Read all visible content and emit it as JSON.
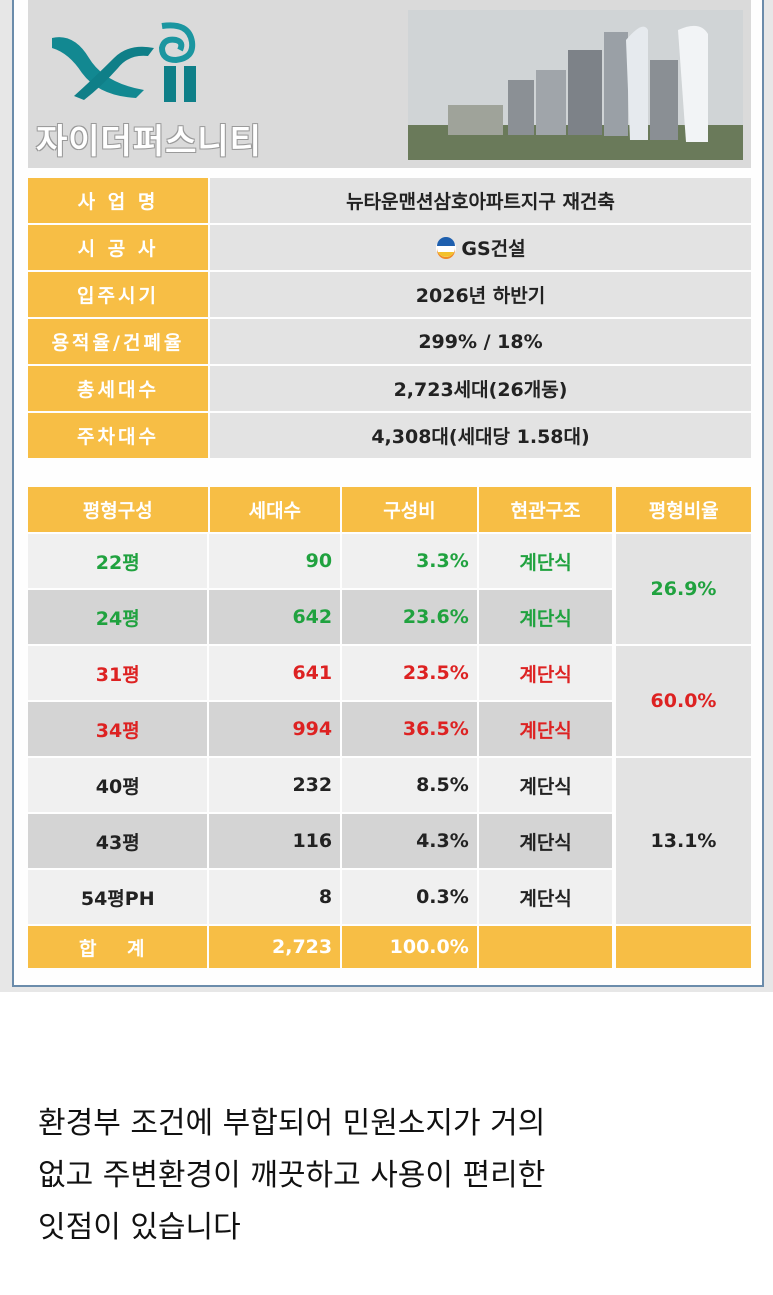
{
  "header": {
    "brand": "자이더퍼스니티",
    "logo_icon": "xi-logo-icon",
    "image": "city-skyline-image"
  },
  "info": [
    {
      "label": "사 업 명",
      "value": "뉴타운맨션삼호아파트지구 재건축"
    },
    {
      "label": "시 공 사",
      "value": "GS건설",
      "icon": "gs-logo-icon"
    },
    {
      "label": "입주시기",
      "value": "2026년 하반기"
    },
    {
      "label": "용적율/건폐율",
      "value": "299% / 18%"
    },
    {
      "label": "총세대수",
      "value": "2,723세대(26개동)"
    },
    {
      "label": "주차대수",
      "value": "4,308대(세대당 1.58대)"
    }
  ],
  "units": {
    "headers": [
      "평형구성",
      "세대수",
      "구성비",
      "현관구조",
      "평형비율"
    ],
    "rows": [
      {
        "type": "22평",
        "count": "90",
        "share": "3.3%",
        "entrance": "계단식",
        "color": "#20a23f"
      },
      {
        "type": "24평",
        "count": "642",
        "share": "23.6%",
        "entrance": "계단식",
        "color": "#20a23f"
      },
      {
        "type": "31평",
        "count": "641",
        "share": "23.5%",
        "entrance": "계단식",
        "color": "#dd2222"
      },
      {
        "type": "34평",
        "count": "994",
        "share": "36.5%",
        "entrance": "계단식",
        "color": "#dd2222"
      },
      {
        "type": "40평",
        "count": "232",
        "share": "8.5%",
        "entrance": "계단식",
        "color": "#222222"
      },
      {
        "type": "43평",
        "count": "116",
        "share": "4.3%",
        "entrance": "계단식",
        "color": "#222222"
      },
      {
        "type": "54평PH",
        "count": "8",
        "share": "0.3%",
        "entrance": "계단식",
        "color": "#222222"
      }
    ],
    "ratios": [
      "26.9%",
      "60.0%",
      "13.1%"
    ],
    "total": {
      "label": "합 계",
      "count": "2,723",
      "share": "100.0%"
    }
  },
  "caption": "환경부 조건에 부합되어 민원소지가 거의\n없고 주변환경이 깨끗하고 사용이 편리한\n잇점이 있습니다",
  "colors": {
    "accent": "#f7be45",
    "green": "#20a23f",
    "red": "#dd2222",
    "teal": "#1a8a95"
  }
}
